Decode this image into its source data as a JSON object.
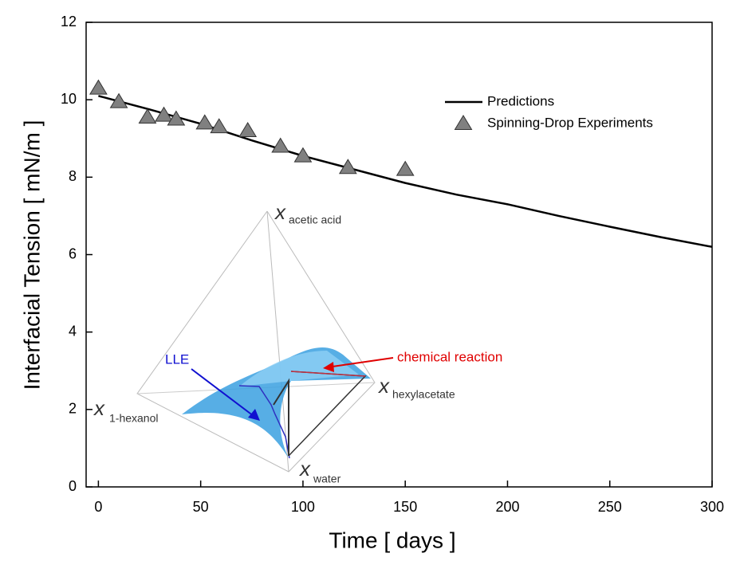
{
  "chart_data": {
    "type": "line",
    "x_label": "Time [ days ]",
    "y_label": "Interfacial Tension [ mN/m ]",
    "xlim": [
      -6,
      300
    ],
    "ylim": [
      0,
      12
    ],
    "xticks": [
      0,
      50,
      100,
      150,
      200,
      250,
      300
    ],
    "yticks": [
      0,
      2,
      4,
      6,
      8,
      10,
      12
    ],
    "series": [
      {
        "name": "Predictions",
        "color": "#000000",
        "style": "line",
        "x": [
          0,
          25,
          50,
          75,
          100,
          125,
          150,
          175,
          200,
          225,
          250,
          275,
          300
        ],
        "values": [
          10.1,
          9.75,
          9.38,
          8.95,
          8.55,
          8.2,
          7.85,
          7.55,
          7.3,
          7.0,
          6.72,
          6.45,
          6.2
        ]
      },
      {
        "name": "Spinning-Drop Experiments",
        "color": "#808080",
        "style": "triangle",
        "x": [
          0,
          10,
          24,
          32,
          38,
          52,
          59,
          73,
          89,
          100,
          122,
          150
        ],
        "values": [
          10.3,
          9.95,
          9.55,
          9.6,
          9.5,
          9.4,
          9.3,
          9.2,
          8.8,
          8.55,
          8.25,
          8.2
        ]
      }
    ],
    "inset": {
      "vertices": [
        {
          "symbol": "x",
          "subscript": "acetic acid"
        },
        {
          "symbol": "x",
          "subscript": "1-hexanol"
        },
        {
          "symbol": "x",
          "subscript": "hexylacetate"
        },
        {
          "symbol": "x",
          "subscript": "water"
        }
      ],
      "annotations": [
        "LLE",
        "chemical reaction"
      ]
    }
  }
}
